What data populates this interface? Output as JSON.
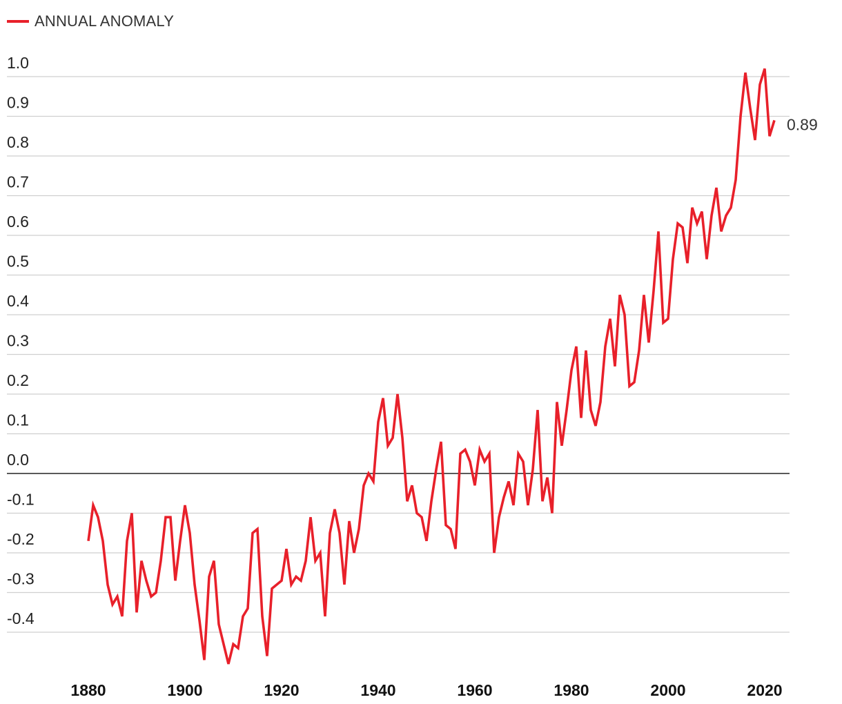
{
  "legend": {
    "label": "ANNUAL ANOMALY",
    "color": "#e8202a"
  },
  "chart_data": {
    "type": "line",
    "title": "",
    "xlabel": "",
    "ylabel": "",
    "xlim": [
      1880,
      2022
    ],
    "ylim": [
      -0.48,
      1.02
    ],
    "grid": true,
    "legend_position": "top-left",
    "y_ticks": [
      "1.0",
      "0.9",
      "0.8",
      "0.7",
      "0.6",
      "0.5",
      "0.4",
      "0.3",
      "0.2",
      "0.1",
      "0.0",
      "-0.1",
      "-0.2",
      "-0.3",
      "-0.4"
    ],
    "y_tick_values": [
      1.0,
      0.9,
      0.8,
      0.7,
      0.6,
      0.5,
      0.4,
      0.3,
      0.2,
      0.1,
      0.0,
      -0.1,
      -0.2,
      -0.3,
      -0.4
    ],
    "x_ticks": [
      "1880",
      "1900",
      "1920",
      "1940",
      "1960",
      "1980",
      "2000",
      "2020"
    ],
    "x_tick_values": [
      1880,
      1900,
      1920,
      1940,
      1960,
      1980,
      2000,
      2020
    ],
    "end_label": "0.89",
    "series": [
      {
        "name": "ANNUAL ANOMALY",
        "color": "#e8202a",
        "x": [
          1880,
          1881,
          1882,
          1883,
          1884,
          1885,
          1886,
          1887,
          1888,
          1889,
          1890,
          1891,
          1892,
          1893,
          1894,
          1895,
          1896,
          1897,
          1898,
          1899,
          1900,
          1901,
          1902,
          1903,
          1904,
          1905,
          1906,
          1907,
          1908,
          1909,
          1910,
          1911,
          1912,
          1913,
          1914,
          1915,
          1916,
          1917,
          1918,
          1919,
          1920,
          1921,
          1922,
          1923,
          1924,
          1925,
          1926,
          1927,
          1928,
          1929,
          1930,
          1931,
          1932,
          1933,
          1934,
          1935,
          1936,
          1937,
          1938,
          1939,
          1940,
          1941,
          1942,
          1943,
          1944,
          1945,
          1946,
          1947,
          1948,
          1949,
          1950,
          1951,
          1952,
          1953,
          1954,
          1955,
          1956,
          1957,
          1958,
          1959,
          1960,
          1961,
          1962,
          1963,
          1964,
          1965,
          1966,
          1967,
          1968,
          1969,
          1970,
          1971,
          1972,
          1973,
          1974,
          1975,
          1976,
          1977,
          1978,
          1979,
          1980,
          1981,
          1982,
          1983,
          1984,
          1985,
          1986,
          1987,
          1988,
          1989,
          1990,
          1991,
          1992,
          1993,
          1994,
          1995,
          1996,
          1997,
          1998,
          1999,
          2000,
          2001,
          2002,
          2003,
          2004,
          2005,
          2006,
          2007,
          2008,
          2009,
          2010,
          2011,
          2012,
          2013,
          2014,
          2015,
          2016,
          2017,
          2018,
          2019,
          2020,
          2021,
          2022
        ],
        "values": [
          -0.17,
          -0.08,
          -0.11,
          -0.17,
          -0.28,
          -0.33,
          -0.31,
          -0.36,
          -0.17,
          -0.1,
          -0.35,
          -0.22,
          -0.27,
          -0.31,
          -0.3,
          -0.22,
          -0.11,
          -0.11,
          -0.27,
          -0.17,
          -0.08,
          -0.15,
          -0.28,
          -0.37,
          -0.47,
          -0.26,
          -0.22,
          -0.38,
          -0.43,
          -0.48,
          -0.43,
          -0.44,
          -0.36,
          -0.34,
          -0.15,
          -0.14,
          -0.36,
          -0.46,
          -0.29,
          -0.28,
          -0.27,
          -0.19,
          -0.28,
          -0.26,
          -0.27,
          -0.22,
          -0.11,
          -0.22,
          -0.2,
          -0.36,
          -0.15,
          -0.09,
          -0.15,
          -0.28,
          -0.12,
          -0.2,
          -0.14,
          -0.03,
          0.0,
          -0.02,
          0.13,
          0.19,
          0.07,
          0.09,
          0.2,
          0.09,
          -0.07,
          -0.03,
          -0.1,
          -0.11,
          -0.17,
          -0.07,
          0.01,
          0.08,
          -0.13,
          -0.14,
          -0.19,
          0.05,
          0.06,
          0.03,
          -0.03,
          0.06,
          0.03,
          0.05,
          -0.2,
          -0.11,
          -0.06,
          -0.02,
          -0.08,
          0.05,
          0.03,
          -0.08,
          0.01,
          0.16,
          -0.07,
          -0.01,
          -0.1,
          0.18,
          0.07,
          0.16,
          0.26,
          0.32,
          0.14,
          0.31,
          0.16,
          0.12,
          0.18,
          0.32,
          0.39,
          0.27,
          0.45,
          0.4,
          0.22,
          0.23,
          0.31,
          0.45,
          0.33,
          0.46,
          0.61,
          0.38,
          0.39,
          0.54,
          0.63,
          0.62,
          0.53,
          0.67,
          0.63,
          0.66,
          0.54,
          0.65,
          0.72,
          0.61,
          0.65,
          0.67,
          0.74,
          0.9,
          1.01,
          0.92,
          0.84,
          0.98,
          1.02,
          0.85,
          0.89
        ]
      }
    ]
  }
}
